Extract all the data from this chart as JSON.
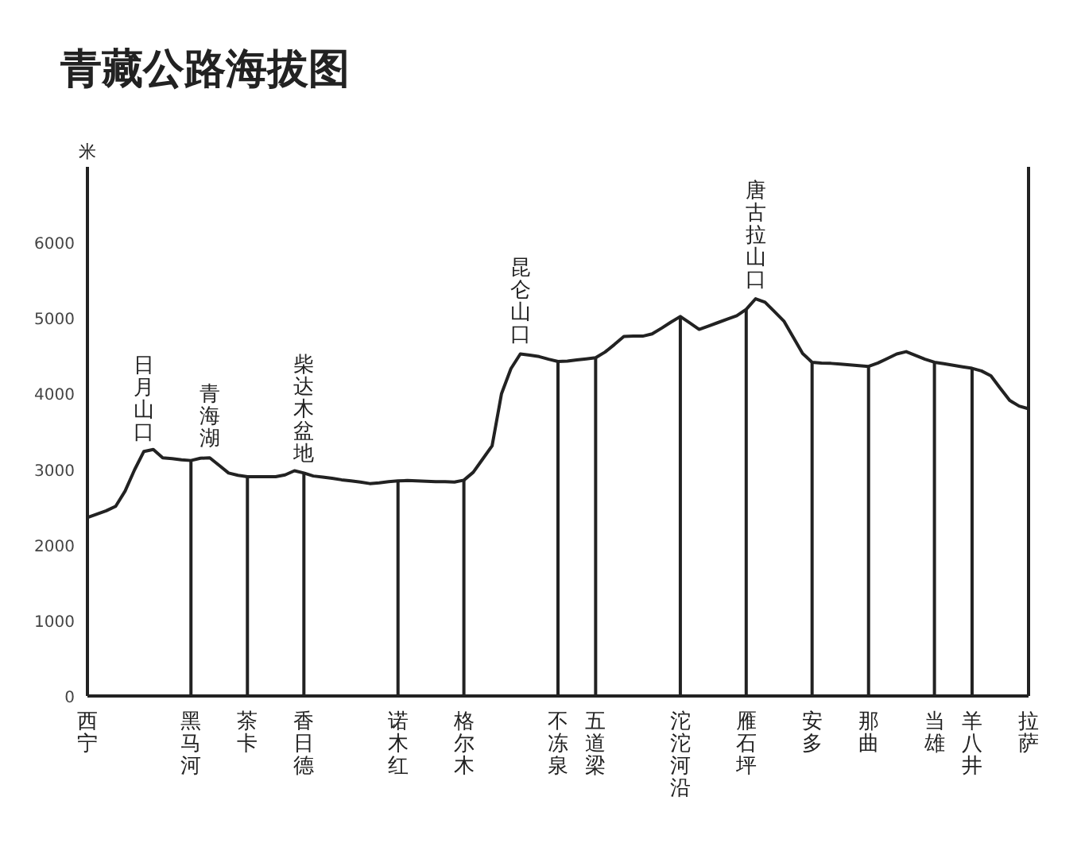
{
  "chart_data": {
    "type": "line",
    "title": "青藏公路海拔图",
    "ylabel": "米",
    "ylim": [
      0,
      7000
    ],
    "yticks": [
      0,
      1000,
      2000,
      3000,
      4000,
      5000,
      6000
    ],
    "categories": [
      "西宁",
      null,
      null,
      null,
      null,
      null,
      null,
      null,
      null,
      null,
      null,
      "黑马河",
      null,
      null,
      null,
      null,
      null,
      "茶卡",
      null,
      null,
      null,
      null,
      null,
      "香日德",
      null,
      null,
      null,
      null,
      null,
      null,
      null,
      null,
      null,
      "诺木红",
      null,
      null,
      null,
      null,
      null,
      null,
      "格尔木",
      null,
      null,
      null,
      null,
      null,
      null,
      null,
      null,
      null,
      "不冻泉",
      null,
      null,
      null,
      "五道梁",
      null,
      null,
      null,
      null,
      null,
      null,
      null,
      null,
      "沱沱河沿",
      null,
      null,
      null,
      null,
      null,
      null,
      "雁石坪",
      null,
      null,
      null,
      null,
      null,
      null,
      "安多",
      null,
      null,
      null,
      null,
      null,
      "那曲",
      null,
      null,
      null,
      null,
      null,
      null,
      "当雄",
      null,
      null,
      null,
      "羊八井",
      null,
      null,
      null,
      null,
      null,
      "拉萨"
    ],
    "grid": false,
    "marker": "none",
    "line_style": "solid",
    "series": [
      {
        "color": "#222222",
        "values": [
          2360,
          2405,
          2450,
          2510,
          2710,
          2990,
          3235,
          3260,
          3150,
          3140,
          3125,
          3115,
          3145,
          3150,
          3050,
          2950,
          2920,
          2900,
          2900,
          2900,
          2900,
          2925,
          2980,
          2950,
          2910,
          2895,
          2880,
          2860,
          2845,
          2830,
          2810,
          2820,
          2835,
          2845,
          2850,
          2845,
          2840,
          2835,
          2835,
          2830,
          2855,
          2960,
          3135,
          3310,
          4000,
          4330,
          4525,
          4510,
          4490,
          4455,
          4425,
          4430,
          4445,
          4460,
          4475,
          4550,
          4650,
          4755,
          4760,
          4760,
          4790,
          4865,
          4945,
          5020,
          4935,
          4850,
          4895,
          4940,
          4985,
          5030,
          5115,
          5255,
          5210,
          5085,
          4960,
          4745,
          4530,
          4415,
          4405,
          4400,
          4390,
          4380,
          4370,
          4360,
          4405,
          4465,
          4525,
          4555,
          4505,
          4455,
          4415,
          4395,
          4375,
          4355,
          4335,
          4300,
          4235,
          4070,
          3910,
          3835,
          3800
        ],
        "value_labels": [
          null,
          null,
          null,
          null,
          null,
          null,
          "日月山口",
          null,
          null,
          null,
          null,
          null,
          null,
          "青海湖",
          null,
          null,
          null,
          null,
          null,
          null,
          null,
          null,
          null,
          "柴达木盆地",
          null,
          null,
          null,
          null,
          null,
          null,
          null,
          null,
          null,
          null,
          null,
          null,
          null,
          null,
          null,
          null,
          null,
          null,
          null,
          null,
          null,
          null,
          "昆仑山口",
          null,
          null,
          null,
          null,
          null,
          null,
          null,
          null,
          null,
          null,
          null,
          null,
          null,
          null,
          null,
          null,
          null,
          null,
          null,
          null,
          null,
          null,
          null,
          null,
          "唐古拉山口",
          null,
          null,
          null,
          null,
          null,
          null,
          null,
          null,
          null,
          null,
          null,
          null,
          null,
          null,
          null,
          null,
          null,
          null,
          null,
          null,
          null,
          null,
          null,
          null,
          null,
          null,
          null,
          null,
          null
        ]
      },
      {
        "type": "bar",
        "color": "#222222",
        "values": [
          null,
          null,
          null,
          null,
          null,
          null,
          null,
          null,
          null,
          null,
          null,
          3115,
          null,
          null,
          null,
          null,
          null,
          2900,
          null,
          null,
          null,
          null,
          null,
          2950,
          null,
          null,
          null,
          null,
          null,
          null,
          null,
          null,
          null,
          2845,
          null,
          null,
          null,
          null,
          null,
          null,
          2855,
          null,
          null,
          null,
          null,
          null,
          null,
          null,
          null,
          null,
          4425,
          null,
          null,
          null,
          4475,
          null,
          null,
          null,
          null,
          null,
          null,
          null,
          null,
          5020,
          null,
          null,
          null,
          null,
          null,
          null,
          5115,
          null,
          null,
          null,
          null,
          null,
          null,
          4415,
          null,
          null,
          null,
          null,
          null,
          4360,
          null,
          null,
          null,
          null,
          null,
          null,
          4415,
          null,
          null,
          null,
          4335,
          null,
          null,
          null,
          null,
          null,
          null
        ]
      }
    ]
  }
}
